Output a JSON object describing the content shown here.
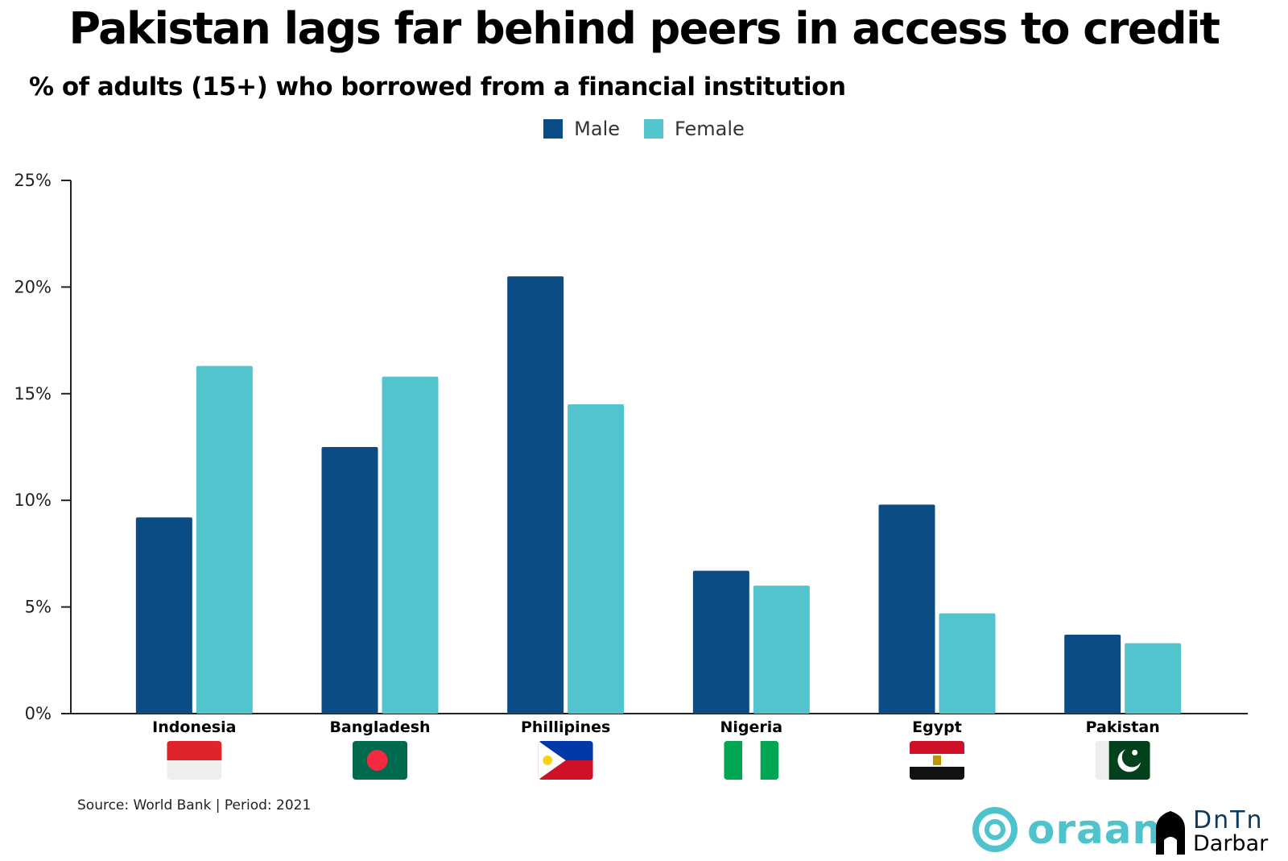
{
  "title": "Pakistan lags far behind peers in access to credit",
  "subtitle": "% of adults (15+) who borrowed from a financial institution",
  "source": "Source:  World Bank | Period: 2021",
  "logos": {
    "oraan": "oraan",
    "data_darbar_line1": "DnTn",
    "data_darbar_line2": "Darbar"
  },
  "colors": {
    "male": "#0b4c85",
    "female": "#52c4ce",
    "axis": "#222222"
  },
  "chart_data": {
    "type": "bar",
    "categories": [
      "Indonesia",
      "Bangladesh",
      "Phillipines",
      "Nigeria",
      "Egypt",
      "Pakistan"
    ],
    "series": [
      {
        "name": "Male",
        "values": [
          9.2,
          12.5,
          20.5,
          6.7,
          9.8,
          3.7
        ]
      },
      {
        "name": "Female",
        "values": [
          16.3,
          15.8,
          14.5,
          6.0,
          4.7,
          3.3
        ]
      }
    ],
    "title": "Pakistan lags far behind peers in access to credit",
    "subtitle": "% of adults (15+) who borrowed from a financial institution",
    "ylim": [
      0,
      25
    ],
    "yticks": [
      0,
      5,
      10,
      15,
      20,
      25
    ],
    "ytick_labels": [
      "0%",
      "5%",
      "10%",
      "15%",
      "20%",
      "25%"
    ],
    "legend": "top-center",
    "grid": false
  },
  "flags": [
    "indonesia-flag-icon",
    "bangladesh-flag-icon",
    "philippines-flag-icon",
    "nigeria-flag-icon",
    "egypt-flag-icon",
    "pakistan-flag-icon"
  ]
}
